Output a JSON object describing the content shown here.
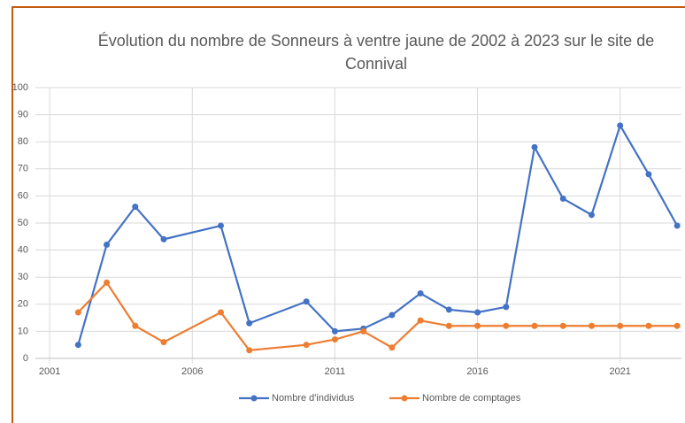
{
  "chart_data": {
    "type": "line",
    "title": "Évolution du nombre de Sonneurs à ventre jaune de 2002 à 2023 sur le site de Connival",
    "x": [
      2002,
      2003,
      2004,
      2005,
      2007,
      2008,
      2010,
      2011,
      2012,
      2013,
      2014,
      2015,
      2016,
      2017,
      2018,
      2019,
      2020,
      2021,
      2022,
      2023
    ],
    "series": [
      {
        "name": "Nombre d'individus",
        "color": "#4472c4",
        "values": [
          5,
          42,
          56,
          44,
          49,
          13,
          21,
          10,
          11,
          16,
          24,
          18,
          17,
          19,
          78,
          59,
          53,
          86,
          68,
          49
        ]
      },
      {
        "name": "Nombre de comptages",
        "color": "#ed7d31",
        "values": [
          17,
          28,
          12,
          6,
          17,
          3,
          5,
          7,
          10,
          4,
          14,
          12,
          12,
          12,
          12,
          12,
          12,
          12,
          12,
          12
        ]
      }
    ],
    "xlim": [
      2000.5,
      2023.15
    ],
    "xticks": [
      2001,
      2006,
      2011,
      2016,
      2021
    ],
    "ylim": [
      0,
      100
    ],
    "yticks": [
      0,
      10,
      20,
      30,
      40,
      50,
      60,
      70,
      80,
      90,
      100
    ],
    "grid": true,
    "legend": "bottom"
  }
}
